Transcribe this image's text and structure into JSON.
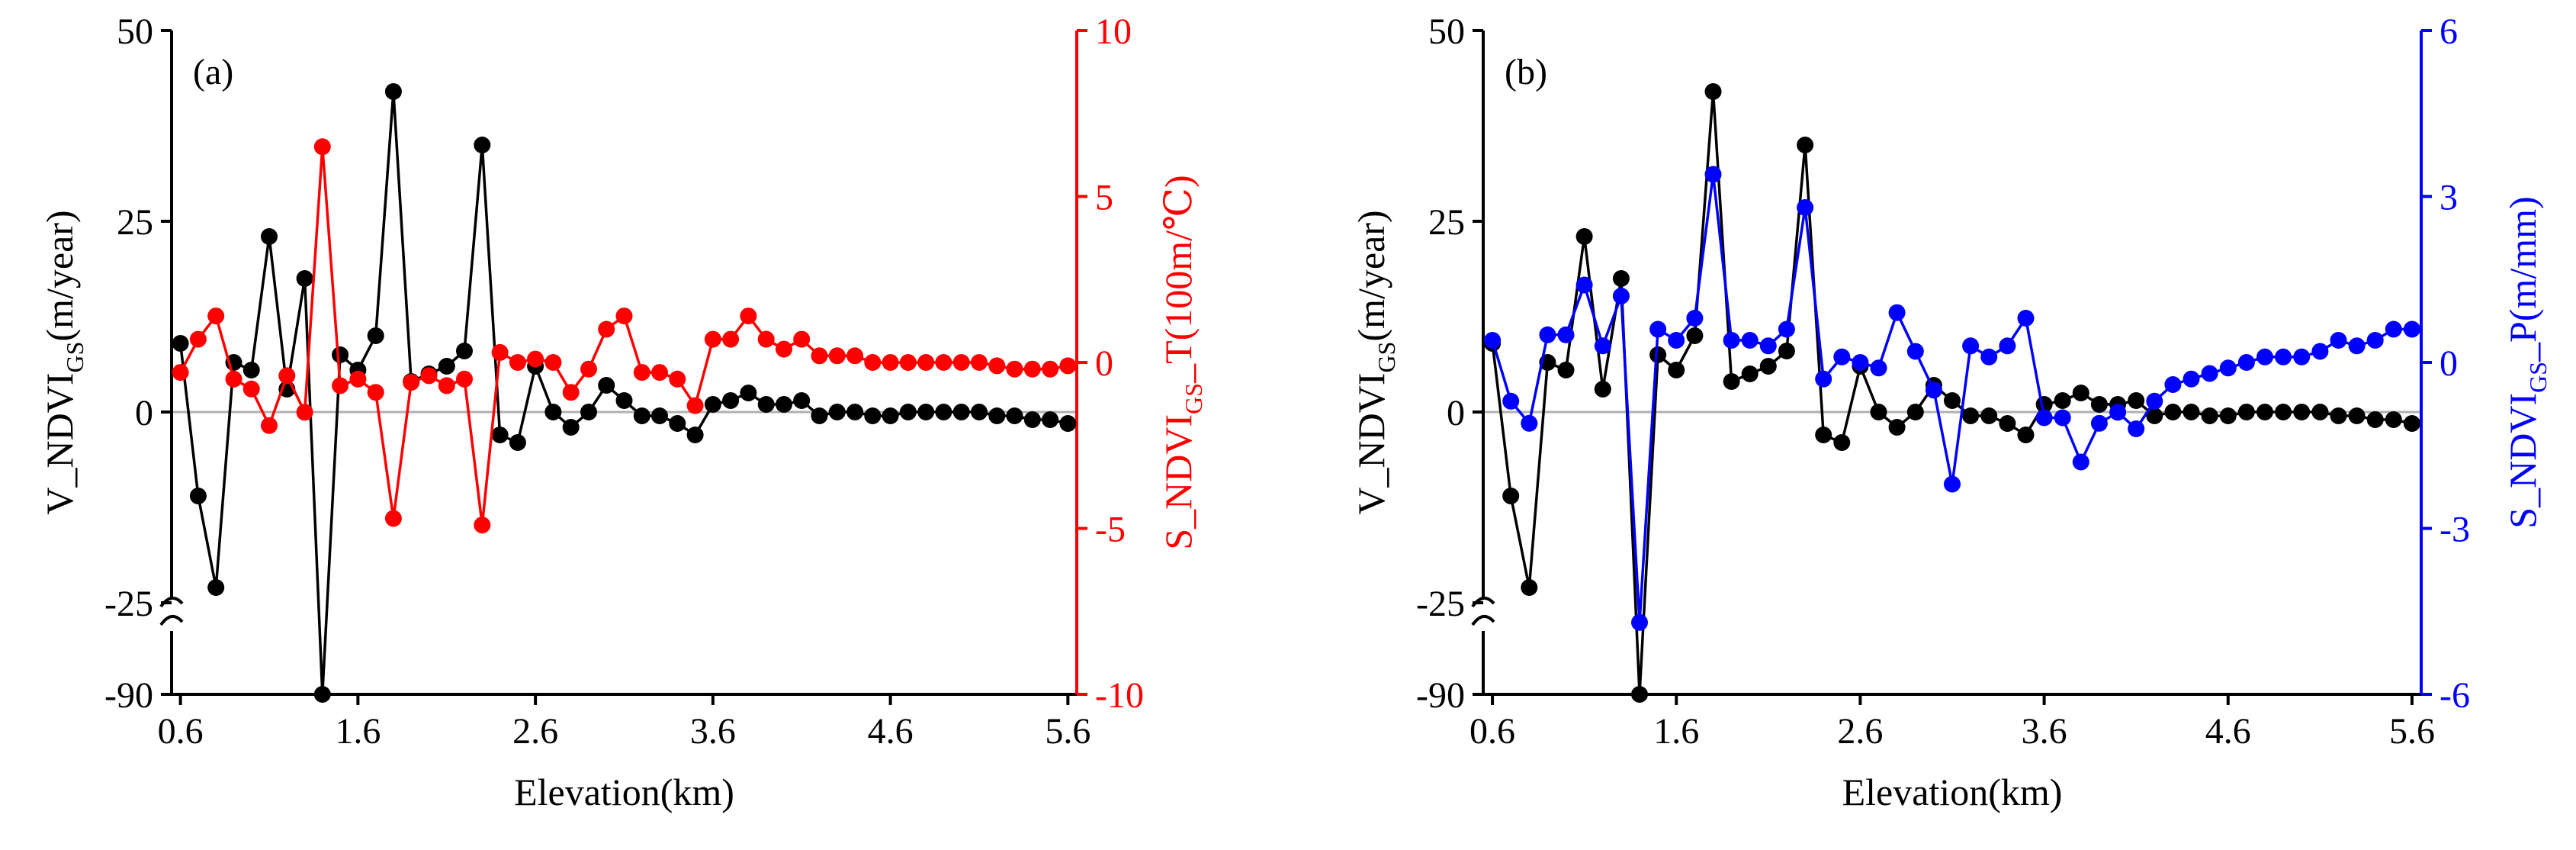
{
  "chart_data": [
    {
      "type": "line",
      "panel_label": "(a)",
      "xlabel": "Elevation(km)",
      "xlim": [
        0.55,
        5.65
      ],
      "xticks": [
        "0.6",
        "1.6",
        "2.6",
        "3.6",
        "4.6",
        "5.6"
      ],
      "ylabel_left": {
        "pre": "V_NDVI",
        "sub": "GS",
        "post": "(m/year)"
      },
      "ylabel_right": {
        "pre": "S_NDVI",
        "sub": "GS",
        "post": "_T(100m/℃)"
      },
      "ylim_left": [
        -90,
        50
      ],
      "yticks_left": [
        "50",
        "25",
        "0",
        "-25",
        "-90"
      ],
      "ylim_right": [
        -10,
        10
      ],
      "yticks_right": [
        "10",
        "5",
        "0",
        "-5",
        "-10"
      ],
      "colors": {
        "left_series": "#000000",
        "right_series": "#ff0000",
        "right_axis": "#ff0000",
        "zero_line": "#b0b0b0"
      },
      "series": [
        {
          "name": "V_NDVI_GS",
          "axis": "left",
          "x": [
            0.6,
            0.7,
            0.8,
            0.9,
            1.0,
            1.1,
            1.2,
            1.3,
            1.4,
            1.5,
            1.6,
            1.7,
            1.8,
            1.9,
            2.0,
            2.1,
            2.2,
            2.3,
            2.4,
            2.5,
            2.6,
            2.7,
            2.8,
            2.9,
            3.0,
            3.1,
            3.2,
            3.3,
            3.4,
            3.5,
            3.6,
            3.7,
            3.8,
            3.9,
            4.0,
            4.1,
            4.2,
            4.3,
            4.4,
            4.5,
            4.6,
            4.7,
            4.8,
            4.9,
            5.0,
            5.1,
            5.2,
            5.3,
            5.4,
            5.5,
            5.6
          ],
          "values": [
            9,
            -11,
            -23,
            6.5,
            5.5,
            23,
            3,
            17.5,
            -89,
            7.5,
            5.5,
            10,
            42,
            4,
            5,
            6,
            8,
            35,
            -3,
            -4,
            6,
            0,
            -2,
            0,
            3.5,
            1.5,
            -0.5,
            -0.5,
            -1.5,
            -3,
            1,
            1.5,
            2.5,
            1,
            1,
            1.5,
            -0.5,
            0,
            0,
            -0.5,
            -0.5,
            0,
            0,
            0,
            0,
            0,
            -0.5,
            -0.5,
            -1,
            -1,
            -1.5
          ]
        },
        {
          "name": "S_NDVI_GS_T",
          "axis": "right",
          "x": [
            0.6,
            0.7,
            0.8,
            0.9,
            1.0,
            1.1,
            1.2,
            1.3,
            1.4,
            1.5,
            1.6,
            1.7,
            1.8,
            1.9,
            2.0,
            2.1,
            2.2,
            2.3,
            2.4,
            2.5,
            2.6,
            2.7,
            2.8,
            2.9,
            3.0,
            3.1,
            3.2,
            3.3,
            3.4,
            3.5,
            3.6,
            3.7,
            3.8,
            3.9,
            4.0,
            4.1,
            4.2,
            4.3,
            4.4,
            4.5,
            4.6,
            4.7,
            4.8,
            4.9,
            5.0,
            5.1,
            5.2,
            5.3,
            5.4,
            5.5,
            5.6
          ],
          "values": [
            -0.3,
            0.7,
            1.4,
            -0.5,
            -0.8,
            -1.9,
            -0.4,
            -1.5,
            6.5,
            -0.7,
            -0.5,
            -0.9,
            -4.7,
            -0.6,
            -0.4,
            -0.7,
            -0.5,
            -4.9,
            0.3,
            0.0,
            0.1,
            0.0,
            -0.9,
            -0.2,
            1.0,
            1.4,
            -0.3,
            -0.3,
            -0.5,
            -1.3,
            0.7,
            0.7,
            1.4,
            0.7,
            0.4,
            0.7,
            0.2,
            0.2,
            0.2,
            0.0,
            0.0,
            0.0,
            0.0,
            0.0,
            0.0,
            0.0,
            -0.1,
            -0.2,
            -0.2,
            -0.2,
            -0.1
          ]
        }
      ]
    },
    {
      "type": "line",
      "panel_label": "(b)",
      "xlabel": "Elevation(km)",
      "xlim": [
        0.55,
        5.65
      ],
      "xticks": [
        "0.6",
        "1.6",
        "2.6",
        "3.6",
        "4.6",
        "5.6"
      ],
      "ylabel_left": {
        "pre": "V_NDVI",
        "sub": "GS",
        "post": "(m/year)"
      },
      "ylabel_right": {
        "pre": "S_NDVI",
        "sub": "GS",
        "post": "_P(m/mm)"
      },
      "ylim_left": [
        -90,
        50
      ],
      "yticks_left": [
        "50",
        "25",
        "0",
        "-25",
        "-90"
      ],
      "ylim_right": [
        -6,
        6
      ],
      "yticks_right": [
        "6",
        "3",
        "0",
        "-3",
        "-6"
      ],
      "colors": {
        "left_series": "#000000",
        "right_series": "#0000ff",
        "right_axis": "#0000ff",
        "zero_line": "#b0b0b0"
      },
      "series": [
        {
          "name": "V_NDVI_GS",
          "axis": "left",
          "x": [
            0.6,
            0.7,
            0.8,
            0.9,
            1.0,
            1.1,
            1.2,
            1.3,
            1.4,
            1.5,
            1.6,
            1.7,
            1.8,
            1.9,
            2.0,
            2.1,
            2.2,
            2.3,
            2.4,
            2.5,
            2.6,
            2.7,
            2.8,
            2.9,
            3.0,
            3.1,
            3.2,
            3.3,
            3.4,
            3.5,
            3.6,
            3.7,
            3.8,
            3.9,
            4.0,
            4.1,
            4.2,
            4.3,
            4.4,
            4.5,
            4.6,
            4.7,
            4.8,
            4.9,
            5.0,
            5.1,
            5.2,
            5.3,
            5.4,
            5.5,
            5.6
          ],
          "values": [
            9,
            -11,
            -23,
            6.5,
            5.5,
            23,
            3,
            17.5,
            -89,
            7.5,
            5.5,
            10,
            42,
            4,
            5,
            6,
            8,
            35,
            -3,
            -4,
            6,
            0,
            -2,
            0,
            3.5,
            1.5,
            -0.5,
            -0.5,
            -1.5,
            -3,
            1,
            1.5,
            2.5,
            1,
            1,
            1.5,
            -0.5,
            0,
            0,
            -0.5,
            -0.5,
            0,
            0,
            0,
            0,
            0,
            -0.5,
            -0.5,
            -1,
            -1,
            -1.5
          ]
        },
        {
          "name": "S_NDVI_GS_P",
          "axis": "right",
          "x": [
            0.6,
            0.7,
            0.8,
            0.9,
            1.0,
            1.1,
            1.2,
            1.3,
            1.4,
            1.5,
            1.6,
            1.7,
            1.8,
            1.9,
            2.0,
            2.1,
            2.2,
            2.3,
            2.4,
            2.5,
            2.6,
            2.7,
            2.8,
            2.9,
            3.0,
            3.1,
            3.2,
            3.3,
            3.4,
            3.5,
            3.6,
            3.7,
            3.8,
            3.9,
            4.0,
            4.1,
            4.2,
            4.3,
            4.4,
            4.5,
            4.6,
            4.7,
            4.8,
            4.9,
            5.0,
            5.1,
            5.2,
            5.3,
            5.4,
            5.5,
            5.6
          ],
          "values": [
            0.4,
            -0.7,
            -1.1,
            0.5,
            0.5,
            1.4,
            0.3,
            1.2,
            -4.7,
            0.6,
            0.4,
            0.8,
            3.4,
            0.4,
            0.4,
            0.3,
            0.6,
            2.8,
            -0.3,
            0.1,
            0.0,
            -0.1,
            0.9,
            0.2,
            -0.5,
            -2.2,
            0.3,
            0.1,
            0.3,
            0.8,
            -1.0,
            -1.0,
            -1.8,
            -1.1,
            -0.9,
            -1.2,
            -0.7,
            -0.4,
            -0.3,
            -0.2,
            -0.1,
            0.0,
            0.1,
            0.1,
            0.1,
            0.2,
            0.4,
            0.3,
            0.4,
            0.6,
            0.6
          ]
        }
      ]
    }
  ]
}
